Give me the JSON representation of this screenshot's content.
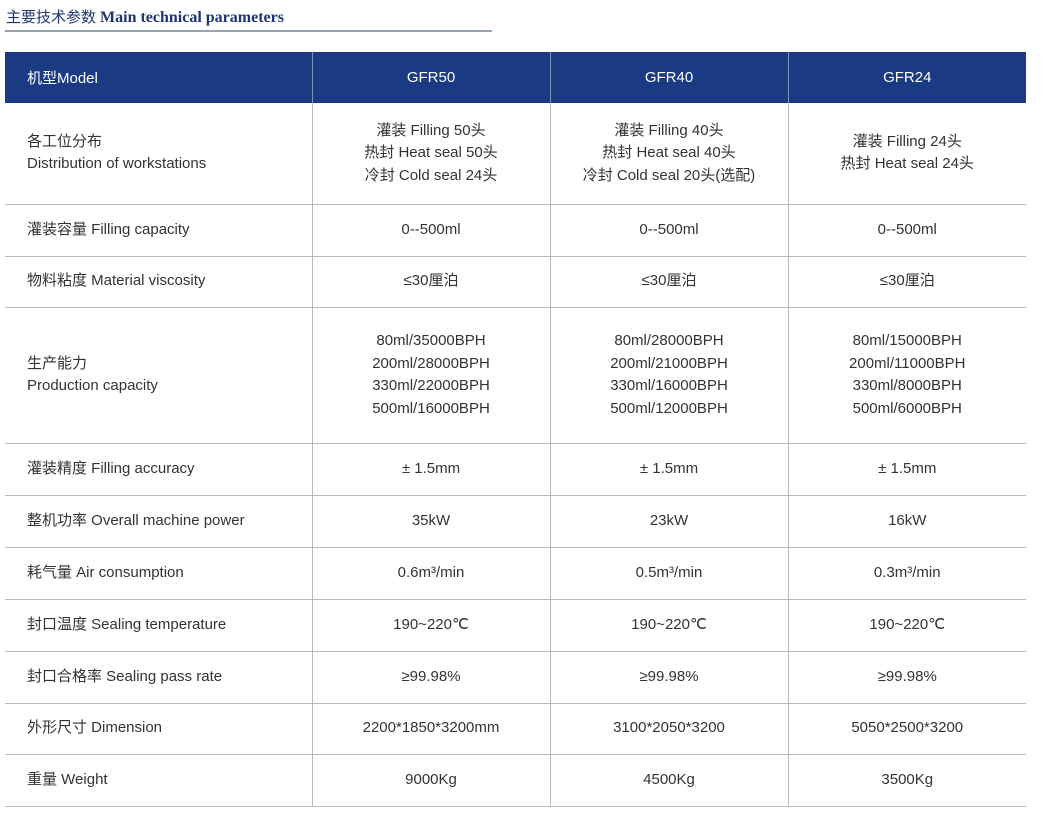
{
  "title": {
    "cn": "主要技术参数",
    "en": "Main technical parameters"
  },
  "header": {
    "label": "机型Model",
    "models": [
      "GFR50",
      "GFR40",
      "GFR24"
    ]
  },
  "rows": [
    {
      "label": [
        "各工位分布",
        "Distribution of workstations"
      ],
      "values": [
        [
          "灌装 Filling 50头",
          "热封 Heat seal 50头",
          "冷封 Cold seal 24头"
        ],
        [
          "灌装 Filling 40头",
          "热封 Heat seal 40头",
          "冷封 Cold seal 20头(选配)"
        ],
        [
          "灌装 Filling 24头",
          "热封 Heat seal 24头"
        ]
      ]
    },
    {
      "label": [
        "灌装容量 Filling capacity"
      ],
      "values": [
        [
          "0--500ml"
        ],
        [
          "0--500ml"
        ],
        [
          "0--500ml"
        ]
      ]
    },
    {
      "label": [
        "物料粘度 Material viscosity"
      ],
      "values": [
        [
          "≤30厘泊"
        ],
        [
          "≤30厘泊"
        ],
        [
          "≤30厘泊"
        ]
      ]
    },
    {
      "label": [
        "生产能力",
        "Production capacity"
      ],
      "values": [
        [
          "80ml/35000BPH",
          "200ml/28000BPH",
          "330ml/22000BPH",
          "500ml/16000BPH"
        ],
        [
          "80ml/28000BPH",
          "200ml/21000BPH",
          "330ml/16000BPH",
          "500ml/12000BPH"
        ],
        [
          "80ml/15000BPH",
          "200ml/11000BPH",
          "330ml/8000BPH",
          "500ml/6000BPH"
        ]
      ]
    },
    {
      "label": [
        "灌装精度 Filling accuracy"
      ],
      "values": [
        [
          "± 1.5mm"
        ],
        [
          "± 1.5mm"
        ],
        [
          "± 1.5mm"
        ]
      ]
    },
    {
      "label": [
        "整机功率 Overall machine power"
      ],
      "values": [
        [
          "35kW"
        ],
        [
          "23kW"
        ],
        [
          "16kW"
        ]
      ]
    },
    {
      "label": [
        "耗气量 Air consumption"
      ],
      "values": [
        [
          "0.6m³/min"
        ],
        [
          "0.5m³/min"
        ],
        [
          "0.3m³/min"
        ]
      ]
    },
    {
      "label": [
        "封口温度 Sealing temperature"
      ],
      "values": [
        [
          "190~220℃"
        ],
        [
          "190~220℃"
        ],
        [
          "190~220℃"
        ]
      ]
    },
    {
      "label": [
        "封口合格率 Sealing pass rate"
      ],
      "values": [
        [
          "≥99.98%"
        ],
        [
          "≥99.98%"
        ],
        [
          "≥99.98%"
        ]
      ]
    },
    {
      "label": [
        "外形尺寸 Dimension"
      ],
      "values": [
        [
          "2200*1850*3200mm"
        ],
        [
          "3100*2050*3200"
        ],
        [
          "5050*2500*3200"
        ]
      ]
    },
    {
      "label": [
        "重量 Weight"
      ],
      "values": [
        [
          "9000Kg"
        ],
        [
          "4500Kg"
        ],
        [
          "3500Kg"
        ]
      ]
    }
  ],
  "colors": {
    "header_bg": "#1b3a84",
    "title": "#1f3570"
  }
}
